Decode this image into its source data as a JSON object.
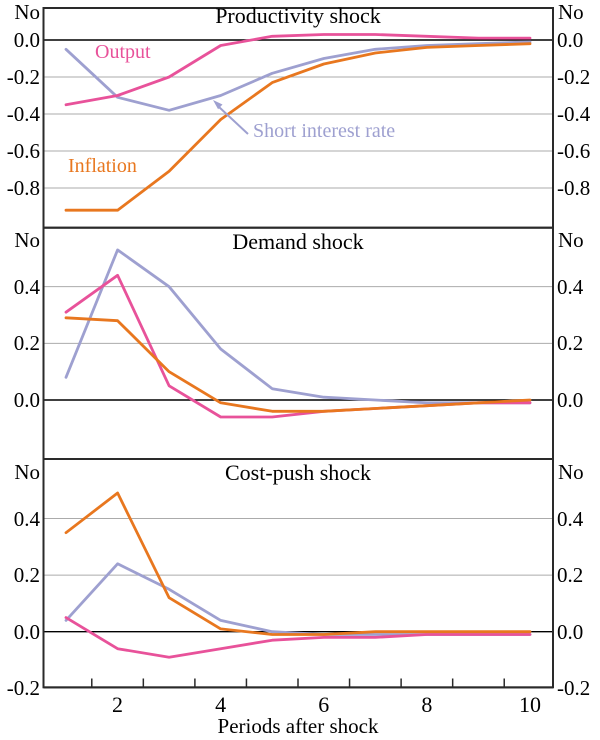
{
  "chart_data": {
    "type": "line",
    "x": [
      1,
      2,
      3,
      4,
      5,
      6,
      7,
      8,
      9,
      10
    ],
    "x_axis": {
      "label": "Periods after shock",
      "tick_labels": [
        2,
        4,
        6,
        8,
        10
      ],
      "minor_ticks": [
        1.5,
        2.5,
        3.5,
        4.5,
        5.5,
        6.5,
        7.5,
        8.5,
        9.5
      ],
      "range": [
        0.56,
        10.44
      ]
    },
    "unit_label": "No",
    "colors": {
      "output": "#e8529a",
      "short_rate": "#9ea0d0",
      "inflation": "#e8771f",
      "grid": "#ababab",
      "zero_line": "#000000",
      "border": "#2a2a2a"
    },
    "series_meta": [
      {
        "id": "output",
        "name": "Output",
        "color": "#e8529a"
      },
      {
        "id": "short_rate",
        "name": "Short interest rate",
        "color": "#9ea0d0"
      },
      {
        "id": "inflation",
        "name": "Inflation",
        "color": "#e8771f"
      }
    ],
    "panels": [
      {
        "title": "Productivity shock",
        "ylim": [
          -1.01,
          0.17
        ],
        "yticks": [
          0.0,
          -0.2,
          -0.4,
          -0.6,
          -0.8
        ],
        "grid": true,
        "series": {
          "output": [
            -0.35,
            -0.3,
            -0.2,
            -0.03,
            0.02,
            0.03,
            0.03,
            0.02,
            0.01,
            0.01
          ],
          "short_rate": [
            -0.05,
            -0.31,
            -0.38,
            -0.3,
            -0.18,
            -0.1,
            -0.05,
            -0.03,
            -0.02,
            -0.01
          ],
          "inflation": [
            -0.92,
            -0.92,
            -0.71,
            -0.43,
            -0.23,
            -0.13,
            -0.07,
            -0.04,
            -0.03,
            -0.02
          ]
        }
      },
      {
        "title": "Demand shock",
        "ylim": [
          -0.21,
          0.61
        ],
        "yticks": [
          0.4,
          0.2,
          0.0
        ],
        "grid": true,
        "series": {
          "output": [
            0.31,
            0.44,
            0.05,
            -0.06,
            -0.06,
            -0.04,
            -0.03,
            -0.02,
            -0.01,
            -0.01
          ],
          "short_rate": [
            0.08,
            0.53,
            0.4,
            0.18,
            0.04,
            0.01,
            0.0,
            -0.01,
            -0.01,
            -0.01
          ],
          "inflation": [
            0.29,
            0.28,
            0.1,
            -0.01,
            -0.04,
            -0.04,
            -0.03,
            -0.02,
            -0.01,
            0.0
          ]
        }
      },
      {
        "title": "Cost-push shock",
        "ylim": [
          -0.2,
          0.61
        ],
        "yticks": [
          0.4,
          0.2,
          0.0,
          -0.2
        ],
        "grid": true,
        "series": {
          "output": [
            0.05,
            -0.06,
            -0.09,
            -0.06,
            -0.03,
            -0.02,
            -0.02,
            -0.01,
            -0.01,
            -0.01
          ],
          "short_rate": [
            0.04,
            0.24,
            0.15,
            0.04,
            0.0,
            -0.01,
            -0.01,
            -0.01,
            -0.01,
            -0.01
          ],
          "inflation": [
            0.35,
            0.49,
            0.12,
            0.01,
            -0.01,
            -0.01,
            0.0,
            0.0,
            0.0,
            0.0
          ]
        }
      }
    ],
    "annotations": {
      "output_label": "Output",
      "short_rate_label": "Short interest rate",
      "inflation_label": "Inflation"
    }
  }
}
